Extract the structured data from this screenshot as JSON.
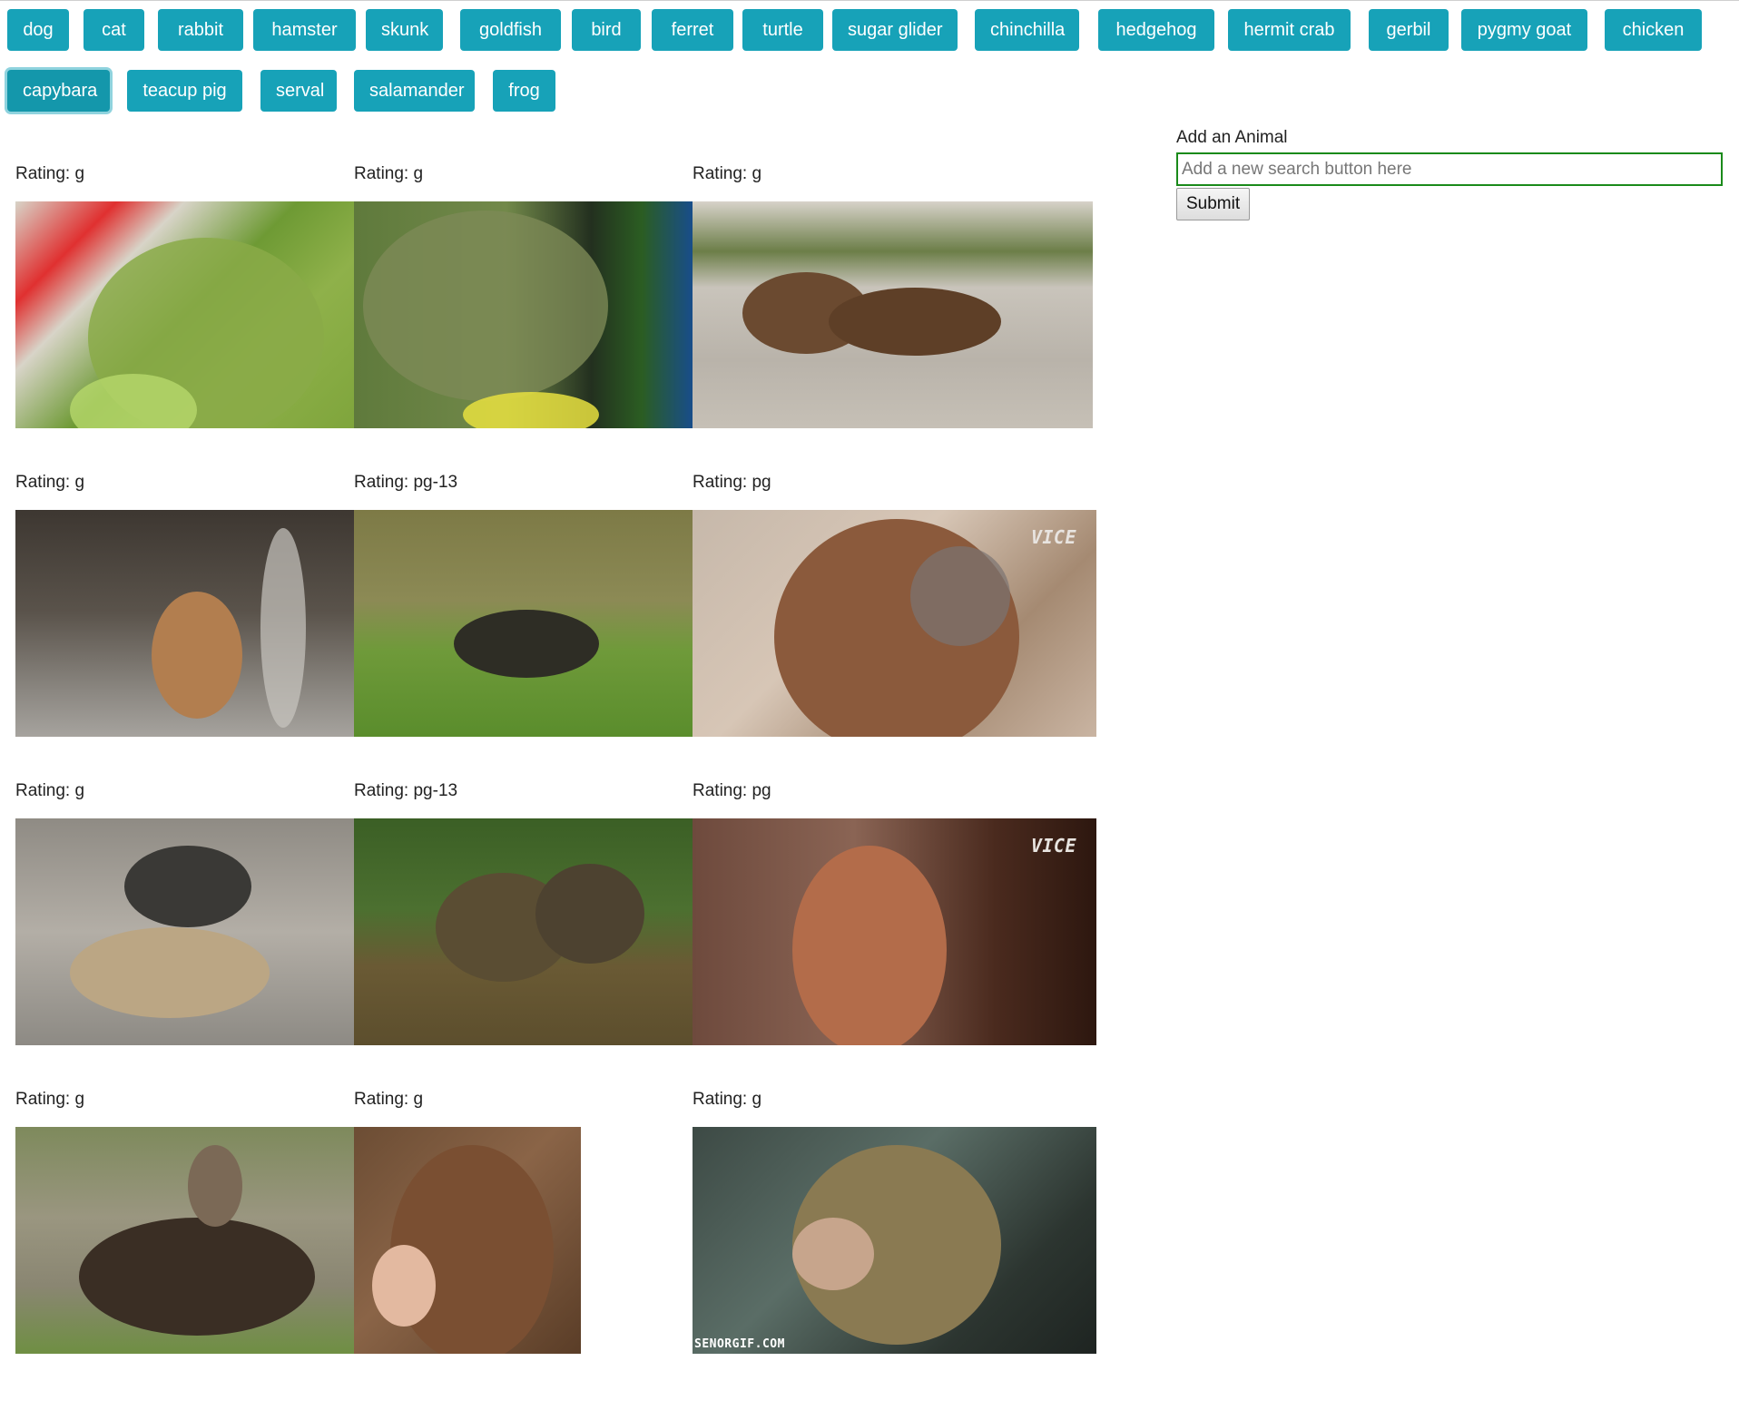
{
  "buttons": [
    "dog",
    "cat",
    "rabbit",
    "hamster",
    "skunk",
    "goldfish",
    "bird",
    "ferret",
    "turtle",
    "sugar glider",
    "chinchilla",
    "hedgehog",
    "hermit crab",
    "gerbil",
    "pygmy goat",
    "chicken",
    "capybara",
    "teacup pig",
    "serval",
    "salamander",
    "frog"
  ],
  "active_button": "capybara",
  "form": {
    "label": "Add an Animal",
    "placeholder": "Add a new search button here",
    "submit_label": "Submit"
  },
  "gifs": [
    {
      "rating_label": "Rating: g",
      "subject": "capybara-closeup-green"
    },
    {
      "rating_label": "Rating: g",
      "subject": "capybara-eating-bowl"
    },
    {
      "rating_label": "Rating: g",
      "subject": "capybaras-in-water"
    },
    {
      "rating_label": "Rating: g",
      "subject": "capybara-under-waterfall"
    },
    {
      "rating_label": "Rating: pg-13",
      "subject": "capybara-on-grass"
    },
    {
      "rating_label": "Rating: pg",
      "subject": "capybara-portrait"
    },
    {
      "rating_label": "Rating: g",
      "subject": "capybara-on-tortoise"
    },
    {
      "rating_label": "Rating: pg-13",
      "subject": "capybaras-in-pond"
    },
    {
      "rating_label": "Rating: pg",
      "subject": "capybara-in-cave"
    },
    {
      "rating_label": "Rating: g",
      "subject": "bird-on-capybara"
    },
    {
      "rating_label": "Rating: g",
      "subject": "capybara-being-petted"
    },
    {
      "rating_label": "Rating: g",
      "subject": "capybara-scratched-on-couch"
    }
  ],
  "watermarks": {
    "vice": "VICE",
    "senorgif": "SENORGIF.COM"
  },
  "colors": {
    "button_bg": "#17a2b8",
    "button_text": "#ffffff",
    "input_border": "#1a8a1a"
  }
}
